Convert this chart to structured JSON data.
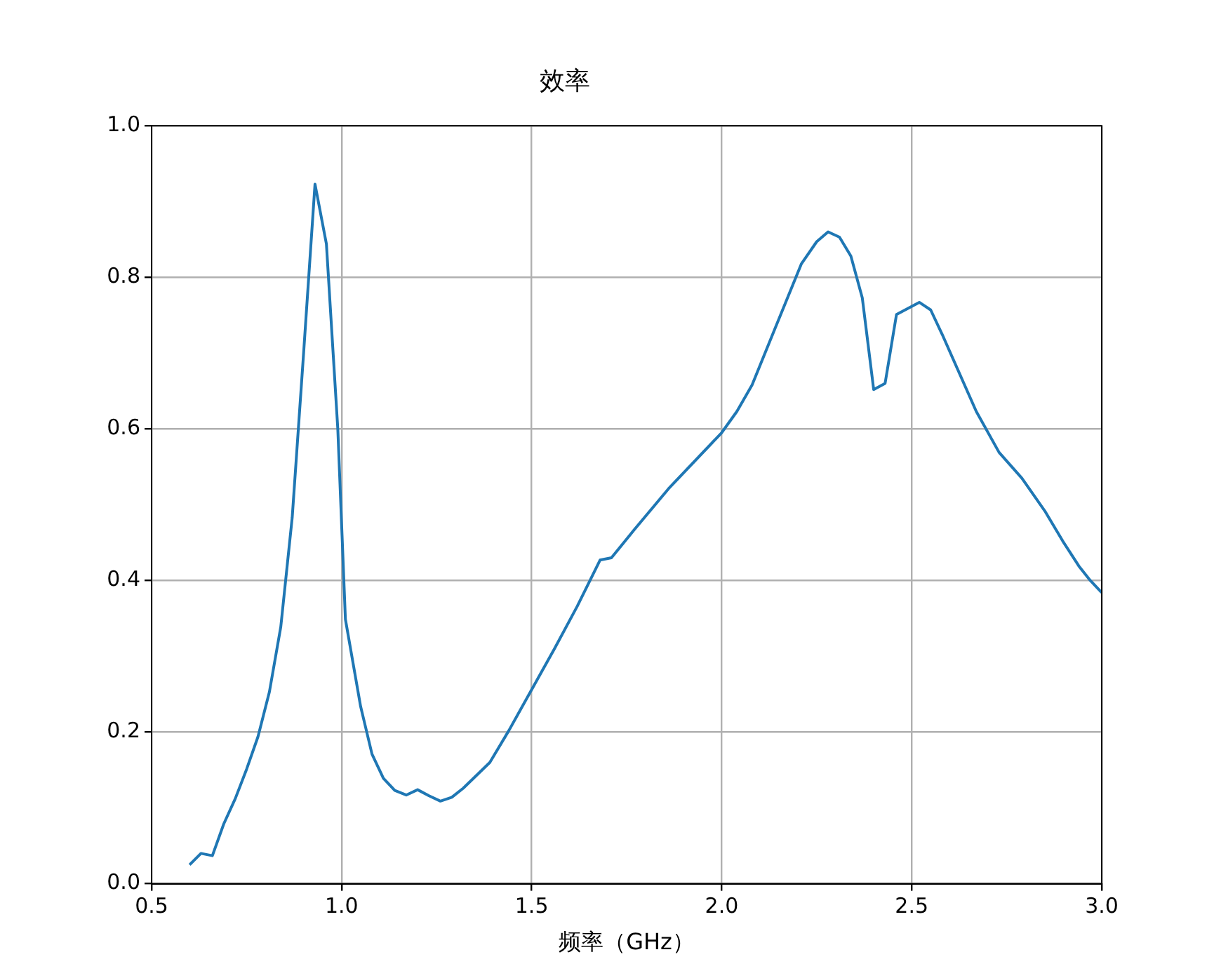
{
  "chart_data": {
    "type": "line",
    "title": "效率",
    "xlabel": "频率（GHz）",
    "x": [
      0.6,
      0.63,
      0.66,
      0.69,
      0.72,
      0.75,
      0.78,
      0.81,
      0.84,
      0.87,
      0.9,
      0.93,
      0.96,
      0.99,
      1.01,
      1.05,
      1.08,
      1.11,
      1.14,
      1.17,
      1.2,
      1.23,
      1.26,
      1.29,
      1.32,
      1.39,
      1.44,
      1.5,
      1.56,
      1.62,
      1.68,
      1.71,
      1.77,
      1.86,
      2.0,
      2.04,
      2.08,
      2.14,
      2.21,
      2.25,
      2.28,
      2.31,
      2.34,
      2.37,
      2.4,
      2.43,
      2.46,
      2.52,
      2.55,
      2.58,
      2.67,
      2.73,
      2.79,
      2.85,
      2.9,
      2.94,
      2.97,
      3.0
    ],
    "series": [
      {
        "color": "#1f77b4",
        "values": [
          0.025,
          0.04,
          0.037,
          0.079,
          0.112,
          0.151,
          0.194,
          0.253,
          0.339,
          0.483,
          0.7,
          0.923,
          0.844,
          0.6,
          0.349,
          0.234,
          0.171,
          0.139,
          0.123,
          0.117,
          0.124,
          0.116,
          0.109,
          0.114,
          0.126,
          0.16,
          0.202,
          0.256,
          0.31,
          0.366,
          0.427,
          0.43,
          0.467,
          0.521,
          0.595,
          0.623,
          0.658,
          0.732,
          0.818,
          0.847,
          0.86,
          0.853,
          0.828,
          0.773,
          0.652,
          0.66,
          0.751,
          0.767,
          0.757,
          0.725,
          0.623,
          0.569,
          0.535,
          0.492,
          0.45,
          0.419,
          0.4,
          0.384
        ]
      }
    ],
    "xlim": [
      0.5,
      3.0
    ],
    "xticks": [
      0.5,
      {
        "value": 1,
        "label": "1.0"
      },
      1.5,
      {
        "value": 2,
        "label": "2.0"
      },
      2.5,
      {
        "value": 3,
        "label": "3.0"
      }
    ],
    "ylim": [
      0.0,
      1.0
    ],
    "yticks": [
      {
        "value": 0,
        "label": "0.0"
      },
      0.2,
      0.4,
      0.6,
      0.8,
      {
        "value": 1,
        "label": "1.0"
      }
    ],
    "grid": true,
    "legend": false,
    "marker": "none",
    "line_style": "solid"
  }
}
